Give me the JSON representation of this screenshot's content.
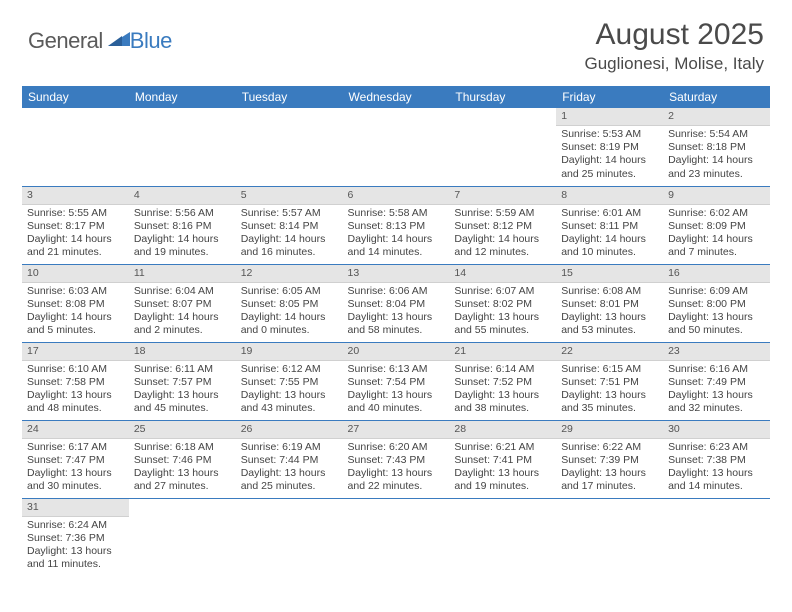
{
  "brand": {
    "word1": "General",
    "word2": "Blue",
    "color_gray": "#5a5a5a",
    "color_blue": "#3a7bbf"
  },
  "title": "August 2025",
  "location": "Guglionesi, Molise, Italy",
  "header_bg": "#3a7bbf",
  "daynum_bg": "#e5e5e5",
  "weekdays": [
    "Sunday",
    "Monday",
    "Tuesday",
    "Wednesday",
    "Thursday",
    "Friday",
    "Saturday"
  ],
  "grid": [
    [
      {
        "empty": true
      },
      {
        "empty": true
      },
      {
        "empty": true
      },
      {
        "empty": true
      },
      {
        "empty": true
      },
      {
        "day": "1",
        "sunrise": "Sunrise: 5:53 AM",
        "sunset": "Sunset: 8:19 PM",
        "daylight1": "Daylight: 14 hours",
        "daylight2": "and 25 minutes."
      },
      {
        "day": "2",
        "sunrise": "Sunrise: 5:54 AM",
        "sunset": "Sunset: 8:18 PM",
        "daylight1": "Daylight: 14 hours",
        "daylight2": "and 23 minutes."
      }
    ],
    [
      {
        "day": "3",
        "sunrise": "Sunrise: 5:55 AM",
        "sunset": "Sunset: 8:17 PM",
        "daylight1": "Daylight: 14 hours",
        "daylight2": "and 21 minutes."
      },
      {
        "day": "4",
        "sunrise": "Sunrise: 5:56 AM",
        "sunset": "Sunset: 8:16 PM",
        "daylight1": "Daylight: 14 hours",
        "daylight2": "and 19 minutes."
      },
      {
        "day": "5",
        "sunrise": "Sunrise: 5:57 AM",
        "sunset": "Sunset: 8:14 PM",
        "daylight1": "Daylight: 14 hours",
        "daylight2": "and 16 minutes."
      },
      {
        "day": "6",
        "sunrise": "Sunrise: 5:58 AM",
        "sunset": "Sunset: 8:13 PM",
        "daylight1": "Daylight: 14 hours",
        "daylight2": "and 14 minutes."
      },
      {
        "day": "7",
        "sunrise": "Sunrise: 5:59 AM",
        "sunset": "Sunset: 8:12 PM",
        "daylight1": "Daylight: 14 hours",
        "daylight2": "and 12 minutes."
      },
      {
        "day": "8",
        "sunrise": "Sunrise: 6:01 AM",
        "sunset": "Sunset: 8:11 PM",
        "daylight1": "Daylight: 14 hours",
        "daylight2": "and 10 minutes."
      },
      {
        "day": "9",
        "sunrise": "Sunrise: 6:02 AM",
        "sunset": "Sunset: 8:09 PM",
        "daylight1": "Daylight: 14 hours",
        "daylight2": "and 7 minutes."
      }
    ],
    [
      {
        "day": "10",
        "sunrise": "Sunrise: 6:03 AM",
        "sunset": "Sunset: 8:08 PM",
        "daylight1": "Daylight: 14 hours",
        "daylight2": "and 5 minutes."
      },
      {
        "day": "11",
        "sunrise": "Sunrise: 6:04 AM",
        "sunset": "Sunset: 8:07 PM",
        "daylight1": "Daylight: 14 hours",
        "daylight2": "and 2 minutes."
      },
      {
        "day": "12",
        "sunrise": "Sunrise: 6:05 AM",
        "sunset": "Sunset: 8:05 PM",
        "daylight1": "Daylight: 14 hours",
        "daylight2": "and 0 minutes."
      },
      {
        "day": "13",
        "sunrise": "Sunrise: 6:06 AM",
        "sunset": "Sunset: 8:04 PM",
        "daylight1": "Daylight: 13 hours",
        "daylight2": "and 58 minutes."
      },
      {
        "day": "14",
        "sunrise": "Sunrise: 6:07 AM",
        "sunset": "Sunset: 8:02 PM",
        "daylight1": "Daylight: 13 hours",
        "daylight2": "and 55 minutes."
      },
      {
        "day": "15",
        "sunrise": "Sunrise: 6:08 AM",
        "sunset": "Sunset: 8:01 PM",
        "daylight1": "Daylight: 13 hours",
        "daylight2": "and 53 minutes."
      },
      {
        "day": "16",
        "sunrise": "Sunrise: 6:09 AM",
        "sunset": "Sunset: 8:00 PM",
        "daylight1": "Daylight: 13 hours",
        "daylight2": "and 50 minutes."
      }
    ],
    [
      {
        "day": "17",
        "sunrise": "Sunrise: 6:10 AM",
        "sunset": "Sunset: 7:58 PM",
        "daylight1": "Daylight: 13 hours",
        "daylight2": "and 48 minutes."
      },
      {
        "day": "18",
        "sunrise": "Sunrise: 6:11 AM",
        "sunset": "Sunset: 7:57 PM",
        "daylight1": "Daylight: 13 hours",
        "daylight2": "and 45 minutes."
      },
      {
        "day": "19",
        "sunrise": "Sunrise: 6:12 AM",
        "sunset": "Sunset: 7:55 PM",
        "daylight1": "Daylight: 13 hours",
        "daylight2": "and 43 minutes."
      },
      {
        "day": "20",
        "sunrise": "Sunrise: 6:13 AM",
        "sunset": "Sunset: 7:54 PM",
        "daylight1": "Daylight: 13 hours",
        "daylight2": "and 40 minutes."
      },
      {
        "day": "21",
        "sunrise": "Sunrise: 6:14 AM",
        "sunset": "Sunset: 7:52 PM",
        "daylight1": "Daylight: 13 hours",
        "daylight2": "and 38 minutes."
      },
      {
        "day": "22",
        "sunrise": "Sunrise: 6:15 AM",
        "sunset": "Sunset: 7:51 PM",
        "daylight1": "Daylight: 13 hours",
        "daylight2": "and 35 minutes."
      },
      {
        "day": "23",
        "sunrise": "Sunrise: 6:16 AM",
        "sunset": "Sunset: 7:49 PM",
        "daylight1": "Daylight: 13 hours",
        "daylight2": "and 32 minutes."
      }
    ],
    [
      {
        "day": "24",
        "sunrise": "Sunrise: 6:17 AM",
        "sunset": "Sunset: 7:47 PM",
        "daylight1": "Daylight: 13 hours",
        "daylight2": "and 30 minutes."
      },
      {
        "day": "25",
        "sunrise": "Sunrise: 6:18 AM",
        "sunset": "Sunset: 7:46 PM",
        "daylight1": "Daylight: 13 hours",
        "daylight2": "and 27 minutes."
      },
      {
        "day": "26",
        "sunrise": "Sunrise: 6:19 AM",
        "sunset": "Sunset: 7:44 PM",
        "daylight1": "Daylight: 13 hours",
        "daylight2": "and 25 minutes."
      },
      {
        "day": "27",
        "sunrise": "Sunrise: 6:20 AM",
        "sunset": "Sunset: 7:43 PM",
        "daylight1": "Daylight: 13 hours",
        "daylight2": "and 22 minutes."
      },
      {
        "day": "28",
        "sunrise": "Sunrise: 6:21 AM",
        "sunset": "Sunset: 7:41 PM",
        "daylight1": "Daylight: 13 hours",
        "daylight2": "and 19 minutes."
      },
      {
        "day": "29",
        "sunrise": "Sunrise: 6:22 AM",
        "sunset": "Sunset: 7:39 PM",
        "daylight1": "Daylight: 13 hours",
        "daylight2": "and 17 minutes."
      },
      {
        "day": "30",
        "sunrise": "Sunrise: 6:23 AM",
        "sunset": "Sunset: 7:38 PM",
        "daylight1": "Daylight: 13 hours",
        "daylight2": "and 14 minutes."
      }
    ],
    [
      {
        "day": "31",
        "sunrise": "Sunrise: 6:24 AM",
        "sunset": "Sunset: 7:36 PM",
        "daylight1": "Daylight: 13 hours",
        "daylight2": "and 11 minutes."
      },
      {
        "empty": true
      },
      {
        "empty": true
      },
      {
        "empty": true
      },
      {
        "empty": true
      },
      {
        "empty": true
      },
      {
        "empty": true
      }
    ]
  ]
}
